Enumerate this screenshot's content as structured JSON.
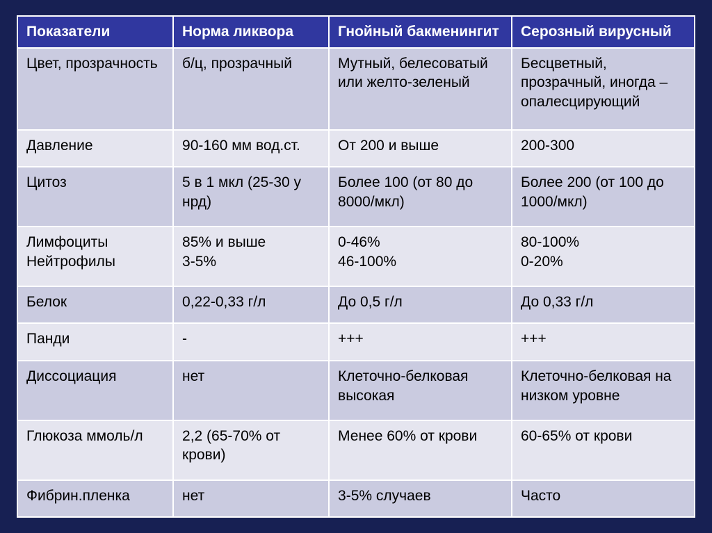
{
  "slide": {
    "background_color": "#172053"
  },
  "table": {
    "header_bg": "#30379f",
    "header_text_color": "#ffffff",
    "body_text_color": "#000000",
    "row_alt_a": "#cacbe0",
    "row_alt_b": "#e5e5ef",
    "border_color": "#ffffff",
    "header_fontsize": 21,
    "cell_fontsize": 21,
    "columns": [
      "Показатели",
      "Норма ликвора",
      "Гнойный бакменингит",
      "Серозный вирусный"
    ],
    "rows": [
      [
        "Цвет, прозрачность",
        "б/ц, прозрачный",
        "Мутный, белесоватый или желто-зеленый",
        "Бесцветный, прозрачный, иногда – опалесцирующий"
      ],
      [
        "Давление",
        "90-160 мм вод.ст.",
        "От 200 и выше",
        "200-300"
      ],
      [
        "Цитоз",
        "5 в 1 мкл (25-30 у нрд)",
        "Более 100 (от 80 до 8000/мкл)",
        "Более 200 (от 100 до 1000/мкл)"
      ],
      [
        "Лимфоциты Нейтрофилы",
        "85% и выше\n3-5%",
        "0-46%\n46-100%",
        "80-100%\n0-20%"
      ],
      [
        "Белок",
        "0,22-0,33 г/л",
        "До 0,5 г/л",
        "До 0,33 г/л"
      ],
      [
        "Панди",
        "-",
        "+++",
        "+++"
      ],
      [
        "Диссоциация",
        "нет",
        "Клеточно-белковая высокая",
        "Клеточно-белковая на низком уровне"
      ],
      [
        "Глюкоза ммоль/л",
        "2,2 (65-70% от крови)",
        "Менее 60% от крови",
        "60-65% от крови"
      ],
      [
        "Фибрин.пленка",
        "нет",
        "3-5% случаев",
        "Часто"
      ]
    ]
  }
}
